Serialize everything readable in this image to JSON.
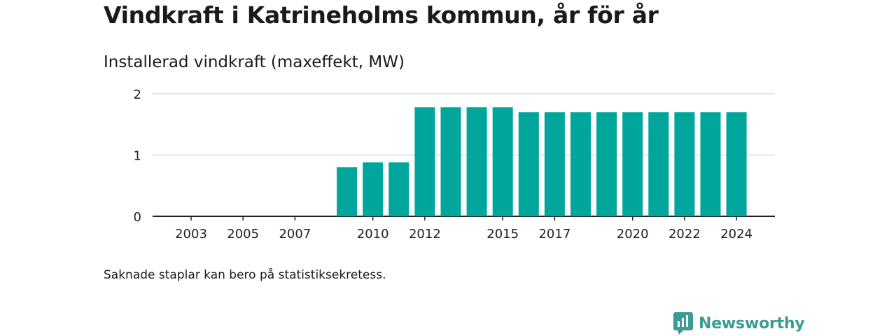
{
  "header": {
    "title": "Vindkraft i Katrineholms kommun, år för år",
    "subtitle": "Installerad vindkraft (maxeffekt, MW)"
  },
  "footer": {
    "note": "Saknade staplar kan bero på statistiksekretess.",
    "brand": "Newsworthy"
  },
  "colors": {
    "bar": "#00a69c",
    "brand": "#3d9b95",
    "grid": "#dddddd",
    "axis": "#222222"
  },
  "chart_data": {
    "type": "bar",
    "title": "Vindkraft i Katrineholms kommun, år för år",
    "subtitle": "Installerad vindkraft (maxeffekt, MW)",
    "ylim": [
      0,
      2
    ],
    "yticks": [
      0,
      1,
      2
    ],
    "xlim": [
      2001,
      2025
    ],
    "xticks": [
      2003,
      2005,
      2007,
      2010,
      2012,
      2015,
      2017,
      2020,
      2022,
      2024
    ],
    "grid": true,
    "x": [
      2009,
      2010,
      2011,
      2012,
      2013,
      2014,
      2015,
      2016,
      2017,
      2018,
      2019,
      2020,
      2021,
      2022,
      2023,
      2024
    ],
    "values": [
      0.8,
      0.88,
      0.88,
      1.78,
      1.78,
      1.78,
      1.78,
      1.7,
      1.7,
      1.7,
      1.7,
      1.7,
      1.7,
      1.7,
      1.7,
      1.7
    ]
  }
}
